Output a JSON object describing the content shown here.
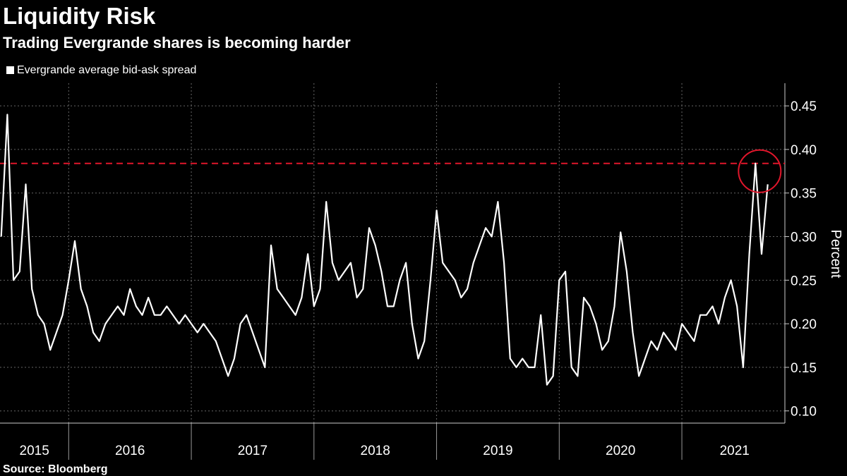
{
  "chart_data": {
    "type": "line",
    "title": "Liquidity Risk",
    "subtitle": "Trading Evergrande shares is becoming harder",
    "ylabel": "Percent",
    "source": "Source: Bloomberg",
    "x": [
      2015.45,
      2015.5,
      2015.55,
      2015.6,
      2015.65,
      2015.7,
      2015.75,
      2015.8,
      2015.85,
      2015.9,
      2015.95,
      2016.0,
      2016.05,
      2016.1,
      2016.15,
      2016.2,
      2016.25,
      2016.3,
      2016.35,
      2016.4,
      2016.45,
      2016.5,
      2016.55,
      2016.6,
      2016.65,
      2016.7,
      2016.75,
      2016.8,
      2016.85,
      2016.9,
      2016.95,
      2017.0,
      2017.05,
      2017.1,
      2017.15,
      2017.2,
      2017.25,
      2017.3,
      2017.35,
      2017.4,
      2017.45,
      2017.5,
      2017.55,
      2017.6,
      2017.65,
      2017.7,
      2017.75,
      2017.8,
      2017.85,
      2017.9,
      2017.95,
      2018.0,
      2018.05,
      2018.1,
      2018.15,
      2018.2,
      2018.25,
      2018.3,
      2018.35,
      2018.4,
      2018.45,
      2018.5,
      2018.55,
      2018.6,
      2018.65,
      2018.7,
      2018.75,
      2018.8,
      2018.85,
      2018.9,
      2018.95,
      2019.0,
      2019.05,
      2019.1,
      2019.15,
      2019.2,
      2019.25,
      2019.3,
      2019.35,
      2019.4,
      2019.45,
      2019.5,
      2019.55,
      2019.6,
      2019.65,
      2019.7,
      2019.75,
      2019.8,
      2019.85,
      2019.9,
      2019.95,
      2020.0,
      2020.05,
      2020.1,
      2020.15,
      2020.2,
      2020.25,
      2020.3,
      2020.35,
      2020.4,
      2020.45,
      2020.5,
      2020.55,
      2020.6,
      2020.65,
      2020.7,
      2020.75,
      2020.8,
      2020.85,
      2020.9,
      2020.95,
      2021.0,
      2021.05,
      2021.1,
      2021.15,
      2021.2,
      2021.25,
      2021.3,
      2021.35,
      2021.4,
      2021.45,
      2021.5,
      2021.55,
      2021.6,
      2021.65,
      2021.7
    ],
    "series": [
      {
        "name": "Evergrande average bid-ask spread",
        "color": "#ffffff",
        "values": [
          0.3,
          0.44,
          0.25,
          0.26,
          0.36,
          0.24,
          0.21,
          0.2,
          0.17,
          0.19,
          0.21,
          0.25,
          0.295,
          0.24,
          0.22,
          0.19,
          0.18,
          0.2,
          0.21,
          0.22,
          0.21,
          0.24,
          0.22,
          0.21,
          0.23,
          0.21,
          0.21,
          0.22,
          0.21,
          0.2,
          0.21,
          0.2,
          0.19,
          0.2,
          0.19,
          0.18,
          0.16,
          0.14,
          0.16,
          0.2,
          0.21,
          0.19,
          0.17,
          0.15,
          0.29,
          0.24,
          0.23,
          0.22,
          0.21,
          0.23,
          0.28,
          0.22,
          0.24,
          0.34,
          0.27,
          0.25,
          0.26,
          0.27,
          0.23,
          0.24,
          0.31,
          0.29,
          0.26,
          0.22,
          0.22,
          0.25,
          0.27,
          0.2,
          0.16,
          0.18,
          0.25,
          0.33,
          0.27,
          0.26,
          0.25,
          0.23,
          0.24,
          0.27,
          0.29,
          0.31,
          0.3,
          0.34,
          0.27,
          0.16,
          0.15,
          0.16,
          0.15,
          0.15,
          0.21,
          0.13,
          0.14,
          0.25,
          0.26,
          0.15,
          0.14,
          0.23,
          0.22,
          0.2,
          0.17,
          0.18,
          0.22,
          0.305,
          0.26,
          0.19,
          0.14,
          0.16,
          0.18,
          0.17,
          0.19,
          0.18,
          0.17,
          0.2,
          0.19,
          0.18,
          0.21,
          0.21,
          0.22,
          0.2,
          0.23,
          0.25,
          0.22,
          0.15,
          0.28,
          0.384,
          0.28,
          0.36
        ]
      }
    ],
    "xlim": [
      2015.44,
      2021.84
    ],
    "xticks": [
      {
        "value": 2015.72,
        "label": "2015"
      },
      {
        "value": 2016.5,
        "label": "2016"
      },
      {
        "value": 2017.5,
        "label": "2017"
      },
      {
        "value": 2018.5,
        "label": "2018"
      },
      {
        "value": 2019.5,
        "label": "2019"
      },
      {
        "value": 2020.5,
        "label": "2020"
      },
      {
        "value": 2021.43,
        "label": "2021"
      }
    ],
    "xgrid": [
      2016,
      2017,
      2018,
      2019,
      2020,
      2021
    ],
    "ylim": [
      0.086,
      0.476
    ],
    "yticks": [
      {
        "value": 0.1,
        "label": "0.10"
      },
      0.15,
      {
        "value": 0.2,
        "label": "0.20"
      },
      0.25,
      {
        "value": 0.3,
        "label": "0.30"
      },
      0.35,
      {
        "value": 0.4,
        "label": "0.40"
      },
      0.45
    ],
    "grid": true,
    "reference_line": {
      "value": 0.384,
      "color": "#e0162b"
    },
    "highlight_color": "#e0162b"
  }
}
